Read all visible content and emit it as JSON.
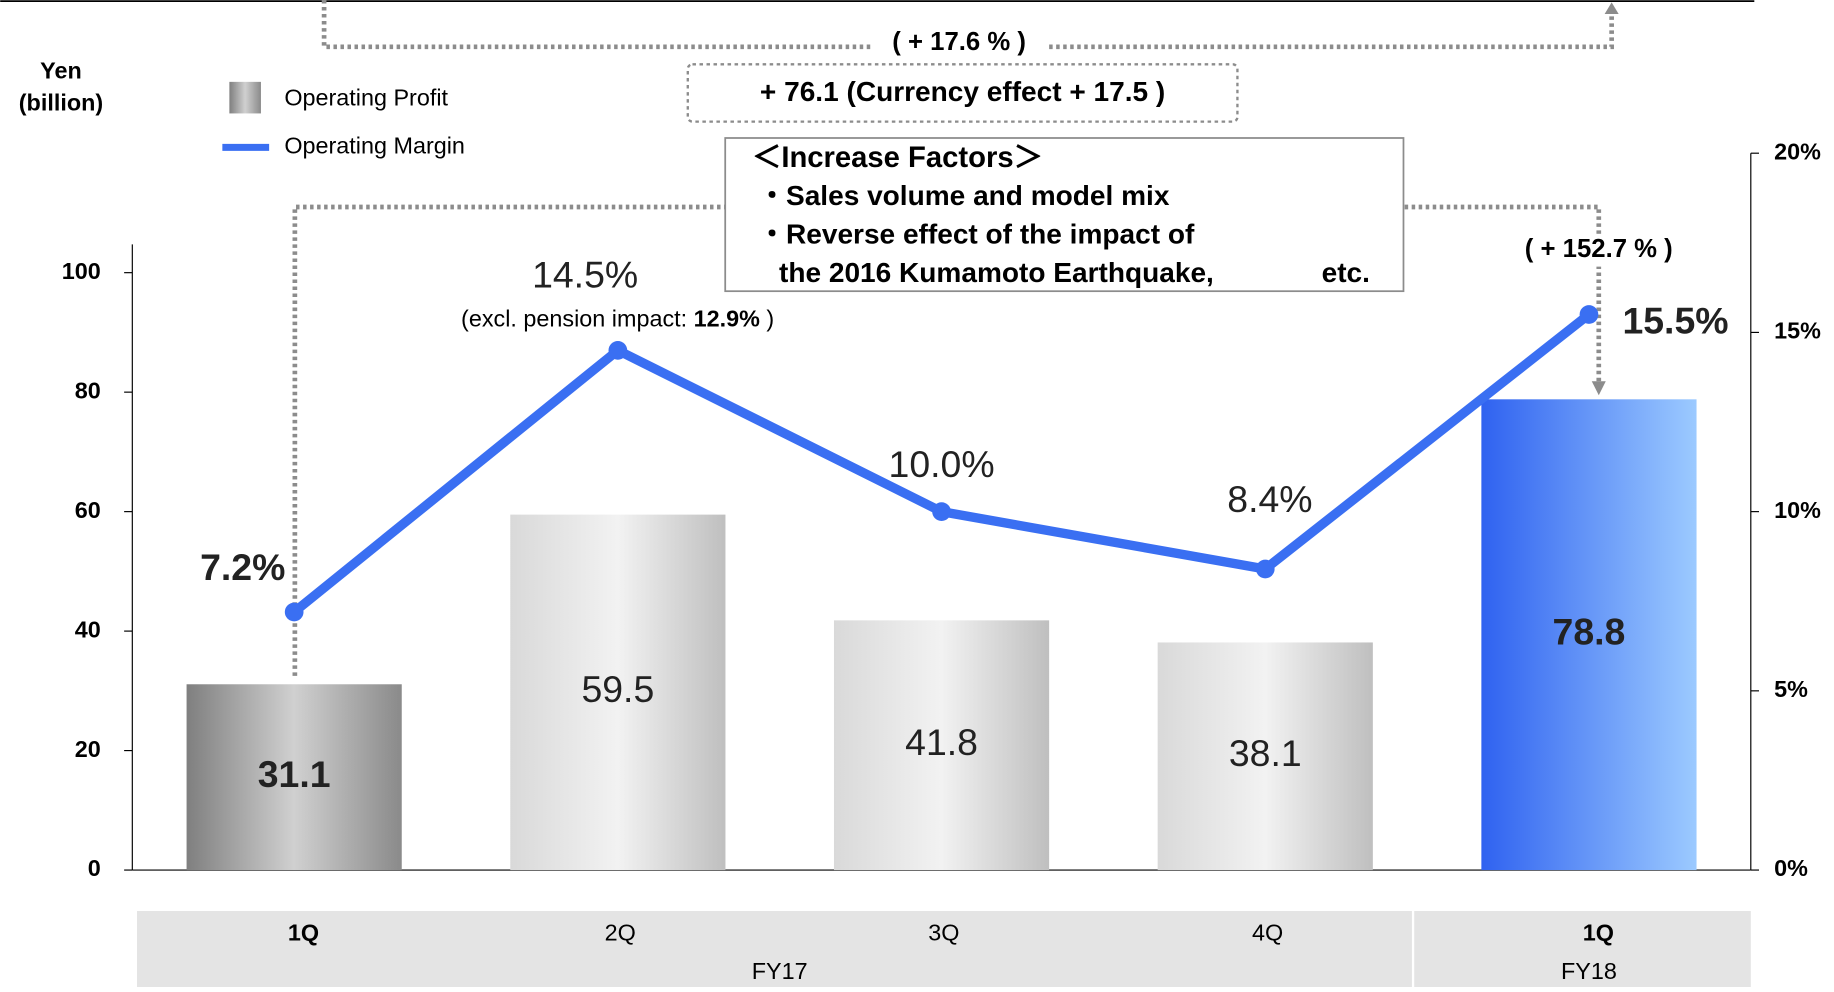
{
  "chart_data": {
    "type": "bar",
    "y_axis_label": [
      "Yen",
      "(billion)"
    ],
    "categories": [
      "1Q",
      "2Q",
      "3Q",
      "4Q",
      "1Q"
    ],
    "groups": [
      {
        "name": "FY17",
        "span": [
          0,
          3
        ]
      },
      {
        "name": "FY18",
        "span": [
          4,
          4
        ]
      }
    ],
    "series": [
      {
        "name": "Operating Profit",
        "type": "bar",
        "color": "#a6a6a6",
        "values": [
          31.1,
          59.5,
          41.8,
          38.1,
          78.8
        ]
      },
      {
        "name": "Operating Margin",
        "type": "line",
        "axis": "y2",
        "color": "#3a6ff2",
        "values": [
          7.2,
          14.5,
          10.0,
          8.4,
          15.5
        ],
        "value_labels": [
          "7.2%",
          "14.5%",
          "10.0%",
          "8.4%",
          "15.5%"
        ]
      }
    ],
    "ylim": [
      0,
      120
    ],
    "yticks": [
      0,
      20,
      40,
      60,
      80,
      100
    ],
    "y2lim": [
      0,
      20
    ],
    "y2ticks": [
      {
        "value": 0,
        "label": "0%"
      },
      {
        "value": 5,
        "label": "5%"
      },
      {
        "value": 10,
        "label": "10%"
      },
      {
        "value": 15,
        "label": "15%"
      },
      {
        "value": 20,
        "label": "20%"
      }
    ],
    "annotations": {
      "total_change_pct": "( + 17.6 % )",
      "change": "+ 76.1 (Currency effect + 17.5 )",
      "yoy_change_pct": "( + 152.7 % )",
      "pension_note": [
        "(excl. pension impact: ",
        "12.9%",
        " )"
      ],
      "factors": [
        "＜Increase Factors＞",
        "・Sales volume and model mix",
        "・Reverse effect of the impact of",
        "the 2016 Kumamoto Earthquake,",
        "etc."
      ]
    }
  }
}
